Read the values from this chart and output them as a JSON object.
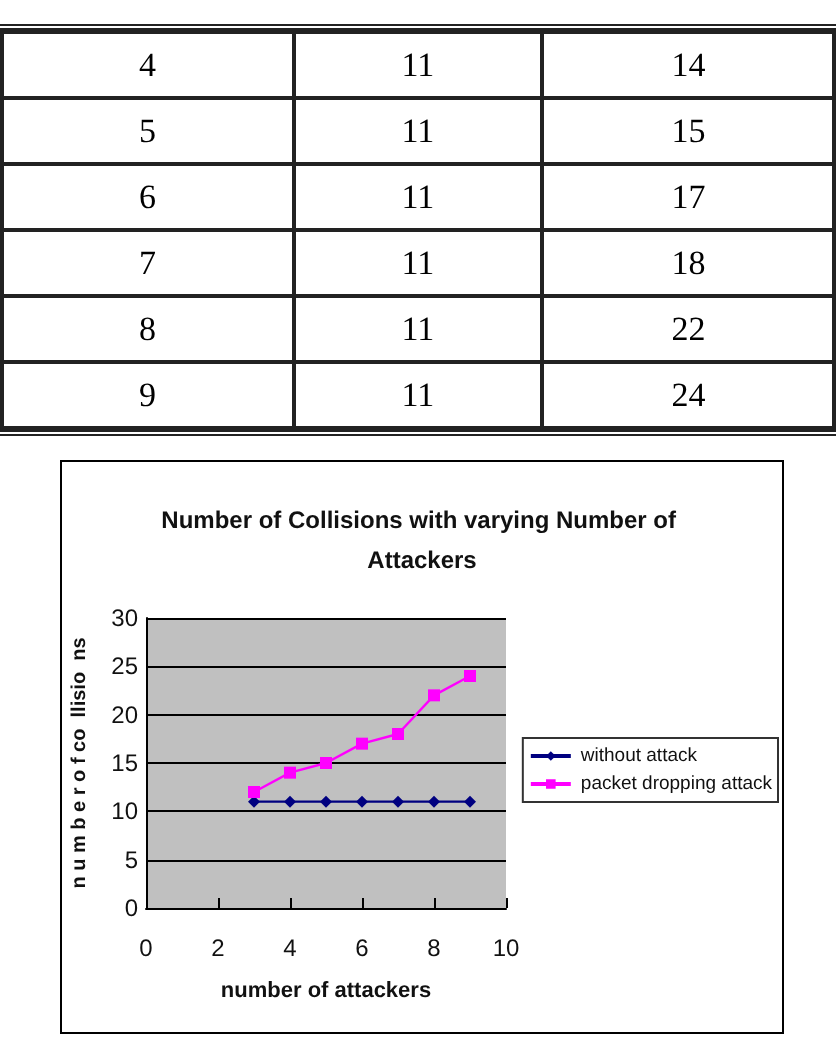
{
  "chart_data": [
    {
      "type": "heatmap",
      "categories": [
        null,
        null
      ],
      "y_categories": [
        "4",
        "5",
        "6",
        "7",
        "8",
        "9"
      ],
      "cells": [
        [
          11,
          14
        ],
        [
          11,
          15
        ],
        [
          11,
          17
        ],
        [
          11,
          18
        ],
        [
          11,
          22
        ],
        [
          11,
          24
        ]
      ],
      "data_labels": true
    },
    {
      "type": "line",
      "title": "Number of Collisions with varying Number of Attackers",
      "xlabel": "number of attackers",
      "ylabel": "n u m b e r o f co  llisio  ns",
      "x": [
        3,
        4,
        5,
        6,
        7,
        8,
        9
      ],
      "series": [
        {
          "name": "without attack",
          "color": "#000080",
          "marker": "diamond",
          "values": [
            11,
            11,
            11,
            11,
            11,
            11,
            11
          ]
        },
        {
          "name": "packet dropping attack",
          "color": "#ff00ff",
          "marker": "square",
          "values": [
            12,
            14,
            15,
            17,
            18,
            22,
            24
          ]
        }
      ],
      "xlim": [
        0,
        10
      ],
      "xticks": [
        0,
        2,
        4,
        6,
        8,
        10
      ],
      "ylim": [
        0,
        30
      ],
      "yticks": [
        0,
        5,
        10,
        15,
        20,
        25,
        30
      ],
      "grid": "y",
      "legend": "right"
    }
  ]
}
